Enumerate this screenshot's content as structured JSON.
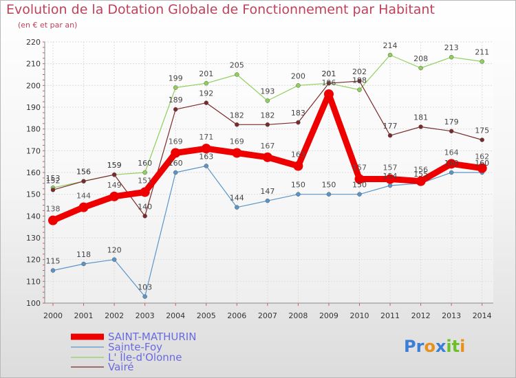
{
  "title": "Evolution de la Dotation Globale de Fonctionnement par Habitant",
  "subtitle": "(en € et par an)",
  "logo": {
    "text": "Proxiti",
    "colors": [
      "#3a7ed8",
      "#3a7ed8",
      "#e8901c",
      "#3a7ed8",
      "#6cc02a",
      "#6cc02a",
      "#e8901c"
    ]
  },
  "chart_data": {
    "type": "line",
    "x": [
      "2000",
      "2001",
      "2002",
      "2003",
      "2004",
      "2005",
      "2006",
      "2007",
      "2008",
      "2009",
      "2010",
      "2011",
      "2012",
      "2013",
      "2014"
    ],
    "ylim": [
      100,
      220
    ],
    "yticks": [
      100,
      110,
      120,
      130,
      140,
      150,
      160,
      170,
      180,
      190,
      200,
      210,
      220
    ],
    "grid": true,
    "legend_position": "bottom-left",
    "series": [
      {
        "name": "Sainte-Foy",
        "color": "#5b95c8",
        "values": [
          115,
          118,
          120,
          103,
          160,
          163,
          144,
          147,
          150,
          150,
          150,
          154,
          155,
          160,
          160
        ]
      },
      {
        "name": "L' Île-d'Olonne",
        "color": "#8fd05a",
        "values": [
          153,
          156,
          159,
          160,
          199,
          201,
          205,
          193,
          200,
          201,
          198,
          214,
          208,
          213,
          211
        ]
      },
      {
        "name": "Vairé",
        "color": "#7a2a2a",
        "values": [
          152,
          156,
          159,
          140,
          189,
          192,
          182,
          182,
          183,
          201,
          202,
          177,
          181,
          179,
          175
        ]
      },
      {
        "name": "SAINT-MATHURIN",
        "color": "#ee0000",
        "values": [
          138,
          144,
          149,
          151,
          169,
          171,
          169,
          167,
          163,
          196,
          157,
          157,
          156,
          164,
          162
        ]
      }
    ]
  }
}
